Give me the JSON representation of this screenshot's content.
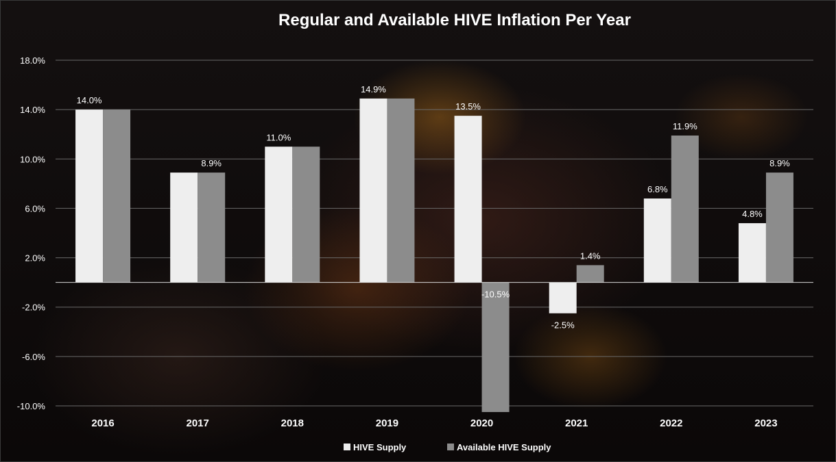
{
  "chart_data": {
    "type": "bar",
    "title": "Regular and Available  HIVE  Inflation Per Year",
    "xlabel": "",
    "ylabel": "",
    "categories": [
      "2016",
      "2017",
      "2018",
      "2019",
      "2020",
      "2021",
      "2022",
      "2023"
    ],
    "series": [
      {
        "name": "HIVE Supply",
        "color": "#eeeeee",
        "values": [
          14.0,
          8.9,
          11.0,
          14.9,
          13.5,
          -2.5,
          6.8,
          4.8
        ],
        "labels": [
          "14.0%",
          "",
          "11.0%",
          "14.9%",
          "13.5%",
          "-2.5%",
          "6.8%",
          "4.8%"
        ]
      },
      {
        "name": "Available HIVE Supply",
        "color": "#8c8c8c",
        "values": [
          14.0,
          8.9,
          11.0,
          14.9,
          -10.5,
          1.4,
          11.9,
          8.9
        ],
        "labels": [
          "",
          "8.9%",
          "",
          "",
          "-10.5%",
          "1.4%",
          "11.9%",
          "8.9%"
        ]
      }
    ],
    "yticks": [
      "18.0%",
      "14.0%",
      "10.0%",
      "6.0%",
      "2.0%",
      "-2.0%",
      "-6.0%",
      "-10.0%"
    ],
    "ytick_values": [
      18,
      14,
      10,
      6,
      2,
      -2,
      -6,
      -10
    ],
    "ylim": [
      -10,
      18
    ],
    "grid": true,
    "legend_position": "bottom"
  }
}
